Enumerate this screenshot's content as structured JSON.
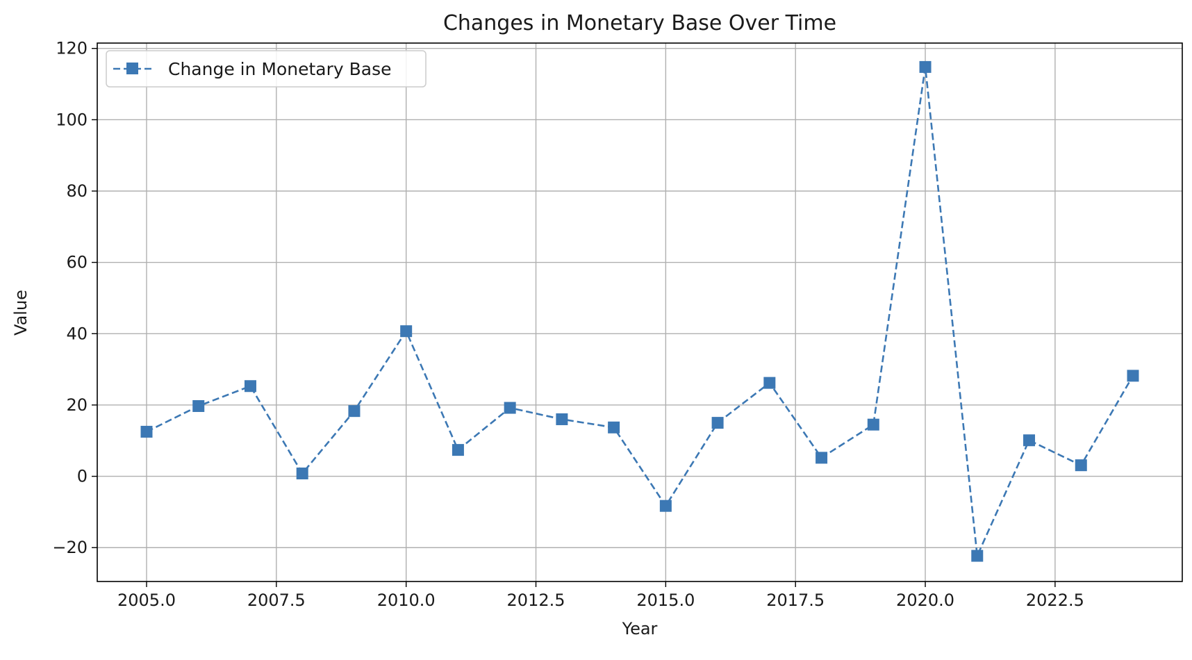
{
  "chart_data": {
    "type": "line",
    "title": "Changes in Monetary Base Over Time",
    "xlabel": "Year",
    "ylabel": "Value",
    "xlim": [
      2004.05,
      2024.95
    ],
    "ylim": [
      -29.5,
      121.5
    ],
    "xticks": [
      2005.0,
      2007.5,
      2010.0,
      2012.5,
      2015.0,
      2017.5,
      2020.0,
      2022.5
    ],
    "xtick_labels": [
      "2005.0",
      "2007.5",
      "2010.0",
      "2012.5",
      "2015.0",
      "2017.5",
      "2020.0",
      "2022.5"
    ],
    "yticks": [
      -20,
      0,
      20,
      40,
      60,
      80,
      100,
      120
    ],
    "ytick_labels": [
      "−20",
      "0",
      "20",
      "40",
      "60",
      "80",
      "100",
      "120"
    ],
    "grid": true,
    "legend_position": "top-left",
    "series": [
      {
        "name": "Change in Monetary Base",
        "color": "#3c78b4",
        "line_style": "dashed",
        "marker": "square",
        "x": [
          2005,
          2006,
          2007,
          2008,
          2009,
          2010,
          2011,
          2012,
          2013,
          2014,
          2015,
          2016,
          2017,
          2018,
          2019,
          2020,
          2021,
          2022,
          2023,
          2024
        ],
        "y": [
          12.5,
          19.7,
          25.3,
          0.8,
          18.3,
          40.7,
          7.4,
          19.2,
          16.0,
          13.7,
          -8.3,
          15.0,
          26.2,
          5.2,
          14.5,
          114.8,
          -22.3,
          10.1,
          3.1,
          28.2
        ]
      }
    ]
  }
}
